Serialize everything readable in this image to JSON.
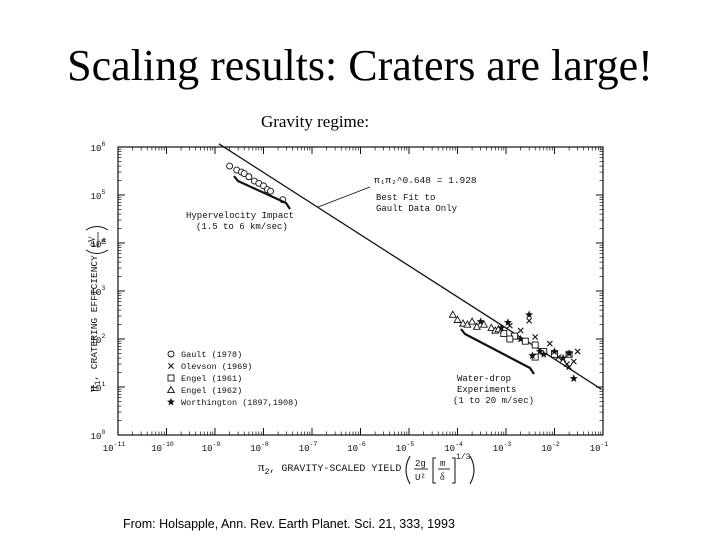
{
  "title": "Scaling results: Craters are large!",
  "subtitle": "Gravity regime:",
  "citation": "From: Holsapple, Ann. Rev. Earth Planet. Sci. 21, 333, 1993",
  "chart_data": {
    "type": "scatter",
    "xscale": "log",
    "yscale": "log",
    "xlim": [
      1e-11,
      0.1
    ],
    "ylim": [
      1,
      1000000
    ],
    "grid": false,
    "legend_position": "bottom-left",
    "x_ticks": [
      {
        "base": "10",
        "exp": "-11"
      },
      {
        "base": "10",
        "exp": "-10"
      },
      {
        "base": "10",
        "exp": "-9"
      },
      {
        "base": "10",
        "exp": "-8"
      },
      {
        "base": "10",
        "exp": "-7"
      },
      {
        "base": "10",
        "exp": "-6"
      },
      {
        "base": "10",
        "exp": "-5"
      },
      {
        "base": "10",
        "exp": "-4"
      },
      {
        "base": "10",
        "exp": "-3"
      },
      {
        "base": "10",
        "exp": "-2"
      },
      {
        "base": "10",
        "exp": "-1"
      }
    ],
    "y_ticks": [
      {
        "base": "10",
        "exp": "0"
      },
      {
        "base": "10",
        "exp": "1"
      },
      {
        "base": "10",
        "exp": "2"
      },
      {
        "base": "10",
        "exp": "3"
      },
      {
        "base": "10",
        "exp": "4"
      },
      {
        "base": "10",
        "exp": "5"
      },
      {
        "base": "10",
        "exp": "6"
      }
    ],
    "xlabel": {
      "pi": "π",
      "sub": "2",
      "text": ", GRAVITY-SCALED YIELD",
      "formula": "(2g/U² [m/δ]^1/3)"
    },
    "ylabel": {
      "pi": "π",
      "sub": "1",
      "text": ", CRATERING EFFICIENCY",
      "formula": "(ρV/m)"
    },
    "fit_line": {
      "label": "π₁π₂^0.648 = 1.928",
      "note_line1": "Best Fit to",
      "note_line2": "Gault Data Only",
      "coefficient": 1.928,
      "exponent": -0.648
    },
    "annotations": [
      {
        "line1": "Hypervelocity Impact",
        "line2": "(1.5 to 6 km/sec)"
      },
      {
        "line1": "Water-drop",
        "line2": "Experiments",
        "line3": "(1 to 20 m/sec)"
      }
    ],
    "series": [
      {
        "name": "Gault (1978)",
        "marker": "circle",
        "points": [
          [
            2e-09,
            400000
          ],
          [
            2.8e-09,
            330000
          ],
          [
            3.5e-09,
            300000
          ],
          [
            4e-09,
            280000
          ],
          [
            5e-09,
            240000
          ],
          [
            6.5e-09,
            195000
          ],
          [
            8e-09,
            175000
          ],
          [
            1e-08,
            155000
          ],
          [
            1.2e-08,
            130000
          ],
          [
            1.4e-08,
            120000
          ],
          [
            2.5e-08,
            80000
          ]
        ]
      },
      {
        "name": "Olevson (1969)",
        "marker": "x",
        "points": [
          [
            0.0012,
            190
          ],
          [
            0.002,
            150
          ],
          [
            0.003,
            240
          ],
          [
            0.004,
            110
          ],
          [
            0.008,
            80
          ],
          [
            0.012,
            42
          ],
          [
            0.015,
            38
          ],
          [
            0.02,
            26
          ],
          [
            0.025,
            34
          ],
          [
            0.03,
            55
          ],
          [
            0.018,
            30
          ],
          [
            0.0015,
            110
          ]
        ]
      },
      {
        "name": "Engel (1961)",
        "marker": "square",
        "points": [
          [
            0.0009,
            130
          ],
          [
            0.0015,
            115
          ],
          [
            0.0025,
            90
          ],
          [
            0.004,
            75
          ],
          [
            0.006,
            55
          ],
          [
            0.004,
            42
          ],
          [
            0.01,
            48
          ],
          [
            0.02,
            48
          ],
          [
            0.0012,
            100
          ]
        ]
      },
      {
        "name": "Engel (1962)",
        "marker": "triangle",
        "points": [
          [
            8e-05,
            320
          ],
          [
            0.0001,
            250
          ],
          [
            0.00013,
            210
          ],
          [
            0.00016,
            200
          ],
          [
            0.0002,
            230
          ],
          [
            0.00025,
            180
          ],
          [
            0.00035,
            200
          ],
          [
            0.0005,
            170
          ],
          [
            0.0006,
            150
          ],
          [
            0.0007,
            160
          ]
        ]
      },
      {
        "name": "Worthington (1897,1908)",
        "marker": "star",
        "points": [
          [
            0.0003,
            230
          ],
          [
            0.0008,
            170
          ],
          [
            0.0011,
            220
          ],
          [
            0.002,
            100
          ],
          [
            0.003,
            320
          ],
          [
            0.005,
            55
          ],
          [
            0.006,
            48
          ],
          [
            0.01,
            55
          ],
          [
            0.02,
            50
          ],
          [
            0.025,
            15
          ],
          [
            0.0035,
            45
          ],
          [
            0.015,
            40
          ]
        ]
      }
    ],
    "colors": {
      "ink": "#111111",
      "background": "#ffffff"
    }
  }
}
